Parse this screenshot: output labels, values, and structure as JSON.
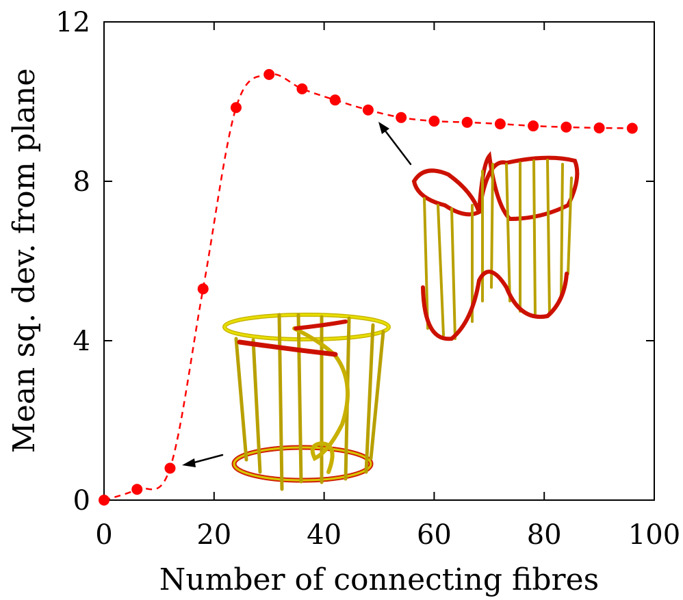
{
  "chart_data": {
    "type": "line",
    "xlabel": "Number of connecting fibres",
    "ylabel": "Mean sq. dev. from plane",
    "x": [
      0,
      6,
      12,
      18,
      24,
      30,
      36,
      42,
      48,
      54,
      60,
      66,
      72,
      78,
      84,
      90,
      96
    ],
    "series": [
      {
        "color": "#ff0000",
        "values": [
          0,
          0.27,
          0.8,
          5.3,
          9.85,
          10.68,
          10.32,
          10.04,
          9.79,
          9.6,
          9.51,
          9.48,
          9.44,
          9.39,
          9.36,
          9.34,
          9.33
        ]
      }
    ],
    "xlim": [
      0,
      100
    ],
    "xticks": [
      0,
      20,
      40,
      60,
      80,
      100
    ],
    "ylim": [
      0,
      12
    ],
    "yticks": [
      0,
      4,
      8,
      12
    ],
    "grid": false
  }
}
